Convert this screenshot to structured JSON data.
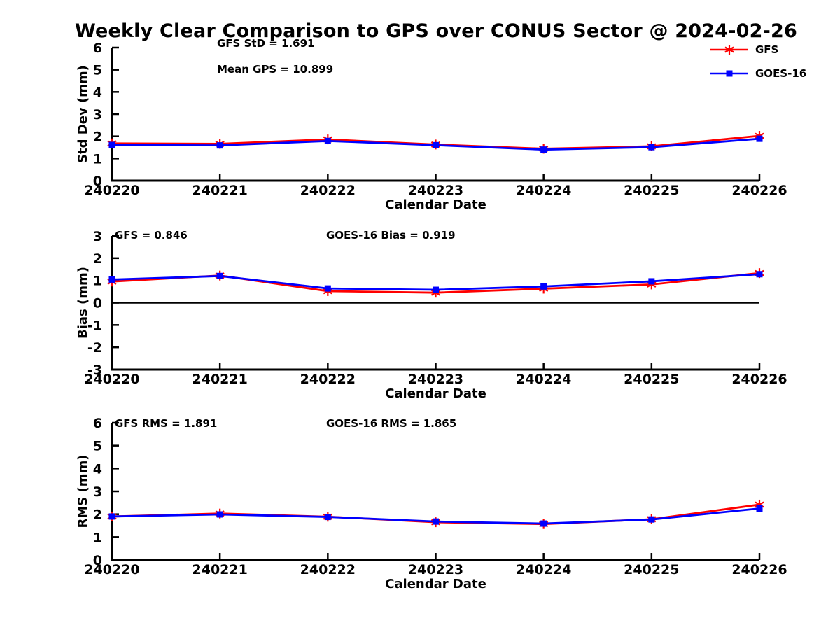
{
  "title": "Weekly Clear Comparison to GPS over CONUS Sector @ 2024-02-26",
  "colors": {
    "gfs": "#ff0000",
    "goes16": "#0000ff",
    "axis": "#000000"
  },
  "legend": {
    "items": [
      {
        "label": "GFS",
        "color": "#ff0000",
        "marker": "asterisk"
      },
      {
        "label": "GOES-16",
        "color": "#0000ff",
        "marker": "square"
      }
    ]
  },
  "chart_data": [
    {
      "id": "std-dev",
      "type": "line",
      "ylabel": "Std Dev (mm)",
      "xlabel": "Calendar Date",
      "ylim": [
        0,
        6
      ],
      "yticks": [
        6,
        5,
        4,
        3,
        2,
        1,
        0
      ],
      "zero_line": false,
      "grid": false,
      "categories": [
        "240220",
        "240221",
        "240222",
        "240223",
        "240224",
        "240225",
        "240226"
      ],
      "series": [
        {
          "name": "GFS",
          "color": "#ff0000",
          "marker": "asterisk",
          "values": [
            1.68,
            1.66,
            1.86,
            1.63,
            1.44,
            1.55,
            2.02
          ]
        },
        {
          "name": "GOES-16",
          "color": "#0000ff",
          "marker": "square",
          "values": [
            1.61,
            1.59,
            1.79,
            1.6,
            1.4,
            1.51,
            1.89
          ]
        }
      ],
      "annotations": [
        "GFS StD = 1.691",
        "Mean GPS = 10.899"
      ]
    },
    {
      "id": "bias",
      "type": "line",
      "ylabel": "Bias (mm)",
      "xlabel": "Calendar Date",
      "ylim": [
        -3,
        3
      ],
      "yticks": [
        3,
        2,
        1,
        0,
        -1,
        -2,
        -3
      ],
      "zero_line": true,
      "grid": false,
      "categories": [
        "240220",
        "240221",
        "240222",
        "240223",
        "240224",
        "240225",
        "240226"
      ],
      "series": [
        {
          "name": "GFS",
          "color": "#ff0000",
          "marker": "asterisk",
          "values": [
            0.95,
            1.22,
            0.52,
            0.45,
            0.63,
            0.82,
            1.33
          ]
        },
        {
          "name": "GOES-16",
          "color": "#0000ff",
          "marker": "square",
          "values": [
            1.04,
            1.2,
            0.64,
            0.58,
            0.73,
            0.96,
            1.28
          ]
        }
      ],
      "annotations": [
        "GFS = 0.846",
        "GOES-16 Bias  = 0.919"
      ]
    },
    {
      "id": "rms",
      "type": "line",
      "ylabel": "RMS (mm)",
      "xlabel": "Calendar Date",
      "ylim": [
        0,
        6
      ],
      "yticks": [
        6,
        5,
        4,
        3,
        2,
        1,
        0
      ],
      "zero_line": false,
      "grid": false,
      "categories": [
        "240220",
        "240221",
        "240222",
        "240223",
        "240224",
        "240225",
        "240226"
      ],
      "series": [
        {
          "name": "GFS",
          "color": "#ff0000",
          "marker": "asterisk",
          "values": [
            1.9,
            2.03,
            1.89,
            1.65,
            1.57,
            1.78,
            2.42
          ]
        },
        {
          "name": "GOES-16",
          "color": "#0000ff",
          "marker": "square",
          "values": [
            1.9,
            1.99,
            1.88,
            1.68,
            1.59,
            1.77,
            2.25
          ]
        }
      ],
      "annotations": [
        "GFS RMS = 1.891",
        "GOES-16 RMS = 1.865"
      ]
    }
  ]
}
